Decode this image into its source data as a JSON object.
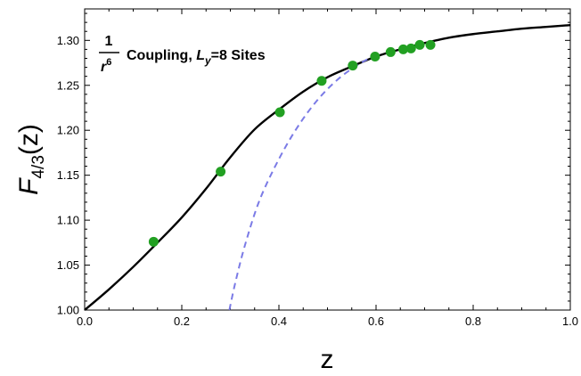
{
  "chart_data": {
    "type": "line",
    "xlabel": "z",
    "ylabel_main": "F",
    "ylabel_sub": "4/3",
    "ylabel_arg": "(z)",
    "xlim": [
      0,
      1
    ],
    "ylim": [
      1.0,
      1.335
    ],
    "xticks": [
      "0.0",
      "0.2",
      "0.4",
      "0.6",
      "0.8",
      "1.0"
    ],
    "yticks": [
      "1.00",
      "1.05",
      "1.10",
      "1.15",
      "1.20",
      "1.25",
      "1.30"
    ],
    "annotation": {
      "frac_num": "1",
      "frac_den": "r",
      "frac_den_exp": "6",
      "text1": "Coupling, ",
      "L": "L",
      "L_sub": "y",
      "text2": "=8 Sites"
    },
    "series": [
      {
        "style": "solid",
        "color": "#000000",
        "x": [
          0.0,
          0.05,
          0.1,
          0.15,
          0.2,
          0.25,
          0.3,
          0.35,
          0.4,
          0.45,
          0.5,
          0.55,
          0.6,
          0.65,
          0.7,
          0.75,
          0.8,
          0.85,
          0.9,
          0.95,
          1.0
        ],
        "y": [
          1.0,
          1.023,
          1.048,
          1.075,
          1.103,
          1.135,
          1.17,
          1.201,
          1.223,
          1.243,
          1.259,
          1.271,
          1.282,
          1.29,
          1.297,
          1.303,
          1.307,
          1.31,
          1.313,
          1.315,
          1.317
        ]
      },
      {
        "style": "dashed",
        "color": "#7b7be6",
        "x": [
          0.298,
          0.31,
          0.33,
          0.36,
          0.4,
          0.44,
          0.48,
          0.52,
          0.56,
          0.6
        ],
        "y": [
          1.0,
          1.03,
          1.072,
          1.122,
          1.168,
          1.205,
          1.234,
          1.256,
          1.272,
          1.284
        ]
      },
      {
        "style": "points",
        "color": "#22a022",
        "x": [
          0.142,
          0.28,
          0.402,
          0.488,
          0.552,
          0.598,
          0.63,
          0.656,
          0.672,
          0.69,
          0.712
        ],
        "y": [
          1.076,
          1.154,
          1.22,
          1.255,
          1.272,
          1.282,
          1.287,
          1.29,
          1.291,
          1.295,
          1.295
        ]
      }
    ]
  }
}
